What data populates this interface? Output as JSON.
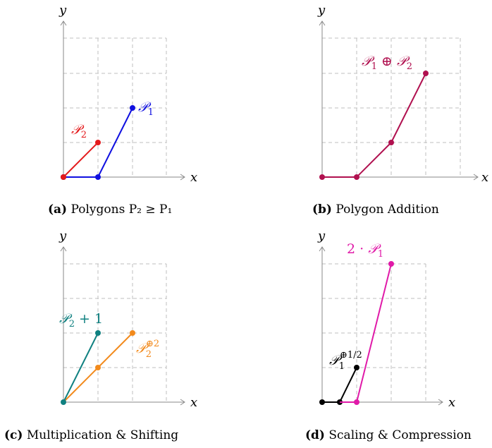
{
  "panels": [
    {
      "id": "a",
      "caption_tag": "(a)",
      "caption_text": "Polygons P₂ ≥ P₁",
      "axis_x_label": "x",
      "axis_y_label": "y",
      "series": [
        {
          "name": "P₂",
          "color": "#e41a1c",
          "points": [
            [
              0,
              0
            ],
            [
              1,
              1
            ]
          ]
        },
        {
          "name": "P₁",
          "color": "#1010e0",
          "points": [
            [
              0,
              0
            ],
            [
              1,
              0
            ],
            [
              2,
              2
            ]
          ]
        }
      ]
    },
    {
      "id": "b",
      "caption_tag": "(b)",
      "caption_text": "Polygon Addition",
      "axis_x_label": "x",
      "axis_y_label": "y",
      "series": [
        {
          "name": "P₁ ⊕ P₂",
          "color": "#b0104f",
          "points": [
            [
              0,
              0
            ],
            [
              1,
              0
            ],
            [
              2,
              1
            ],
            [
              3,
              3
            ]
          ]
        }
      ]
    },
    {
      "id": "c",
      "caption_tag": "(c)",
      "caption_text": "Multiplication & Shifting",
      "axis_x_label": "x",
      "axis_y_label": "y",
      "series": [
        {
          "name": "P₂ + 1",
          "color": "#0f8080",
          "points": [
            [
              0,
              0
            ],
            [
              1,
              2
            ]
          ]
        },
        {
          "name": "P₂^⊕2",
          "color": "#f28a1c",
          "points": [
            [
              0,
              0
            ],
            [
              1,
              1
            ],
            [
              2,
              2
            ]
          ]
        }
      ]
    },
    {
      "id": "d",
      "caption_tag": "(d)",
      "caption_text": "Scaling & Compression",
      "axis_x_label": "x",
      "axis_y_label": "y",
      "series": [
        {
          "name": "2 · P₁",
          "color": "#e01aa8",
          "points": [
            [
              1,
              0
            ],
            [
              2,
              4
            ]
          ]
        },
        {
          "name": "P₁^⊕1/2",
          "color": "#000000",
          "points": [
            [
              0,
              0
            ],
            [
              0.5,
              0
            ],
            [
              1,
              1
            ]
          ]
        }
      ]
    }
  ]
}
